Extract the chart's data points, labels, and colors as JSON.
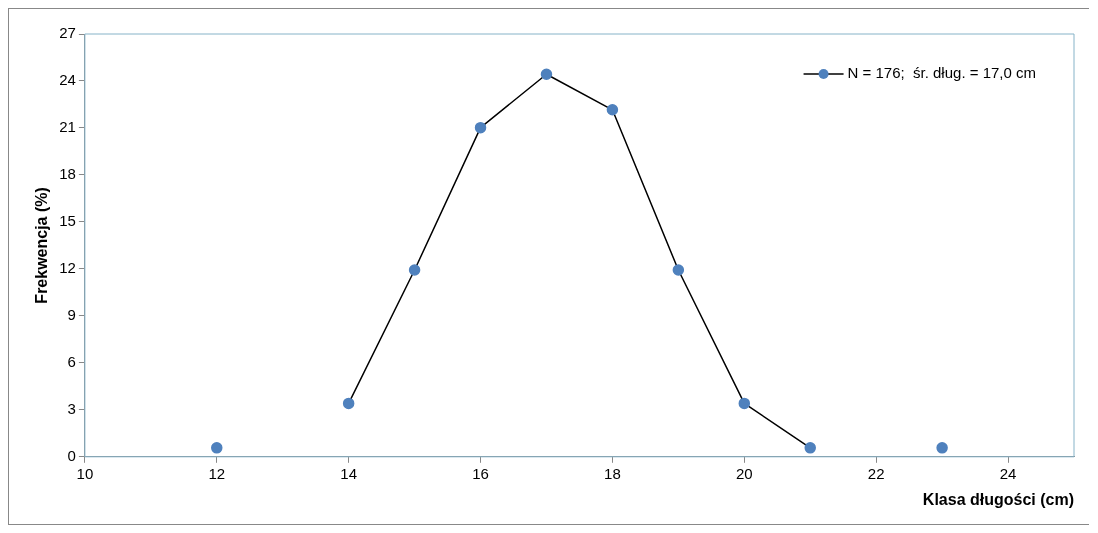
{
  "chart_data": {
    "type": "line",
    "xlabel": "Klasa długości (cm)",
    "ylabel": "Frekwencja (%)",
    "x": [
      12,
      13,
      14,
      15,
      16,
      17,
      18,
      19,
      20,
      21,
      22,
      23
    ],
    "series": [
      {
        "name": "N = 176;  śr. dług. = 17,0 cm",
        "color": "#4f81bd",
        "values": [
          0.57,
          null,
          3.41,
          11.93,
          21.02,
          24.43,
          22.16,
          11.93,
          3.41,
          0.57,
          null,
          0.57
        ]
      }
    ],
    "xlim": [
      10,
      25
    ],
    "xticks": [
      10,
      12,
      14,
      16,
      18,
      20,
      22,
      24
    ],
    "ylim": [
      0,
      27
    ],
    "yticks": [
      0,
      3,
      6,
      9,
      12,
      15,
      18,
      21,
      24,
      27
    ],
    "grid": false,
    "legend": "top right",
    "marker": "circle",
    "line_style": "solid"
  }
}
